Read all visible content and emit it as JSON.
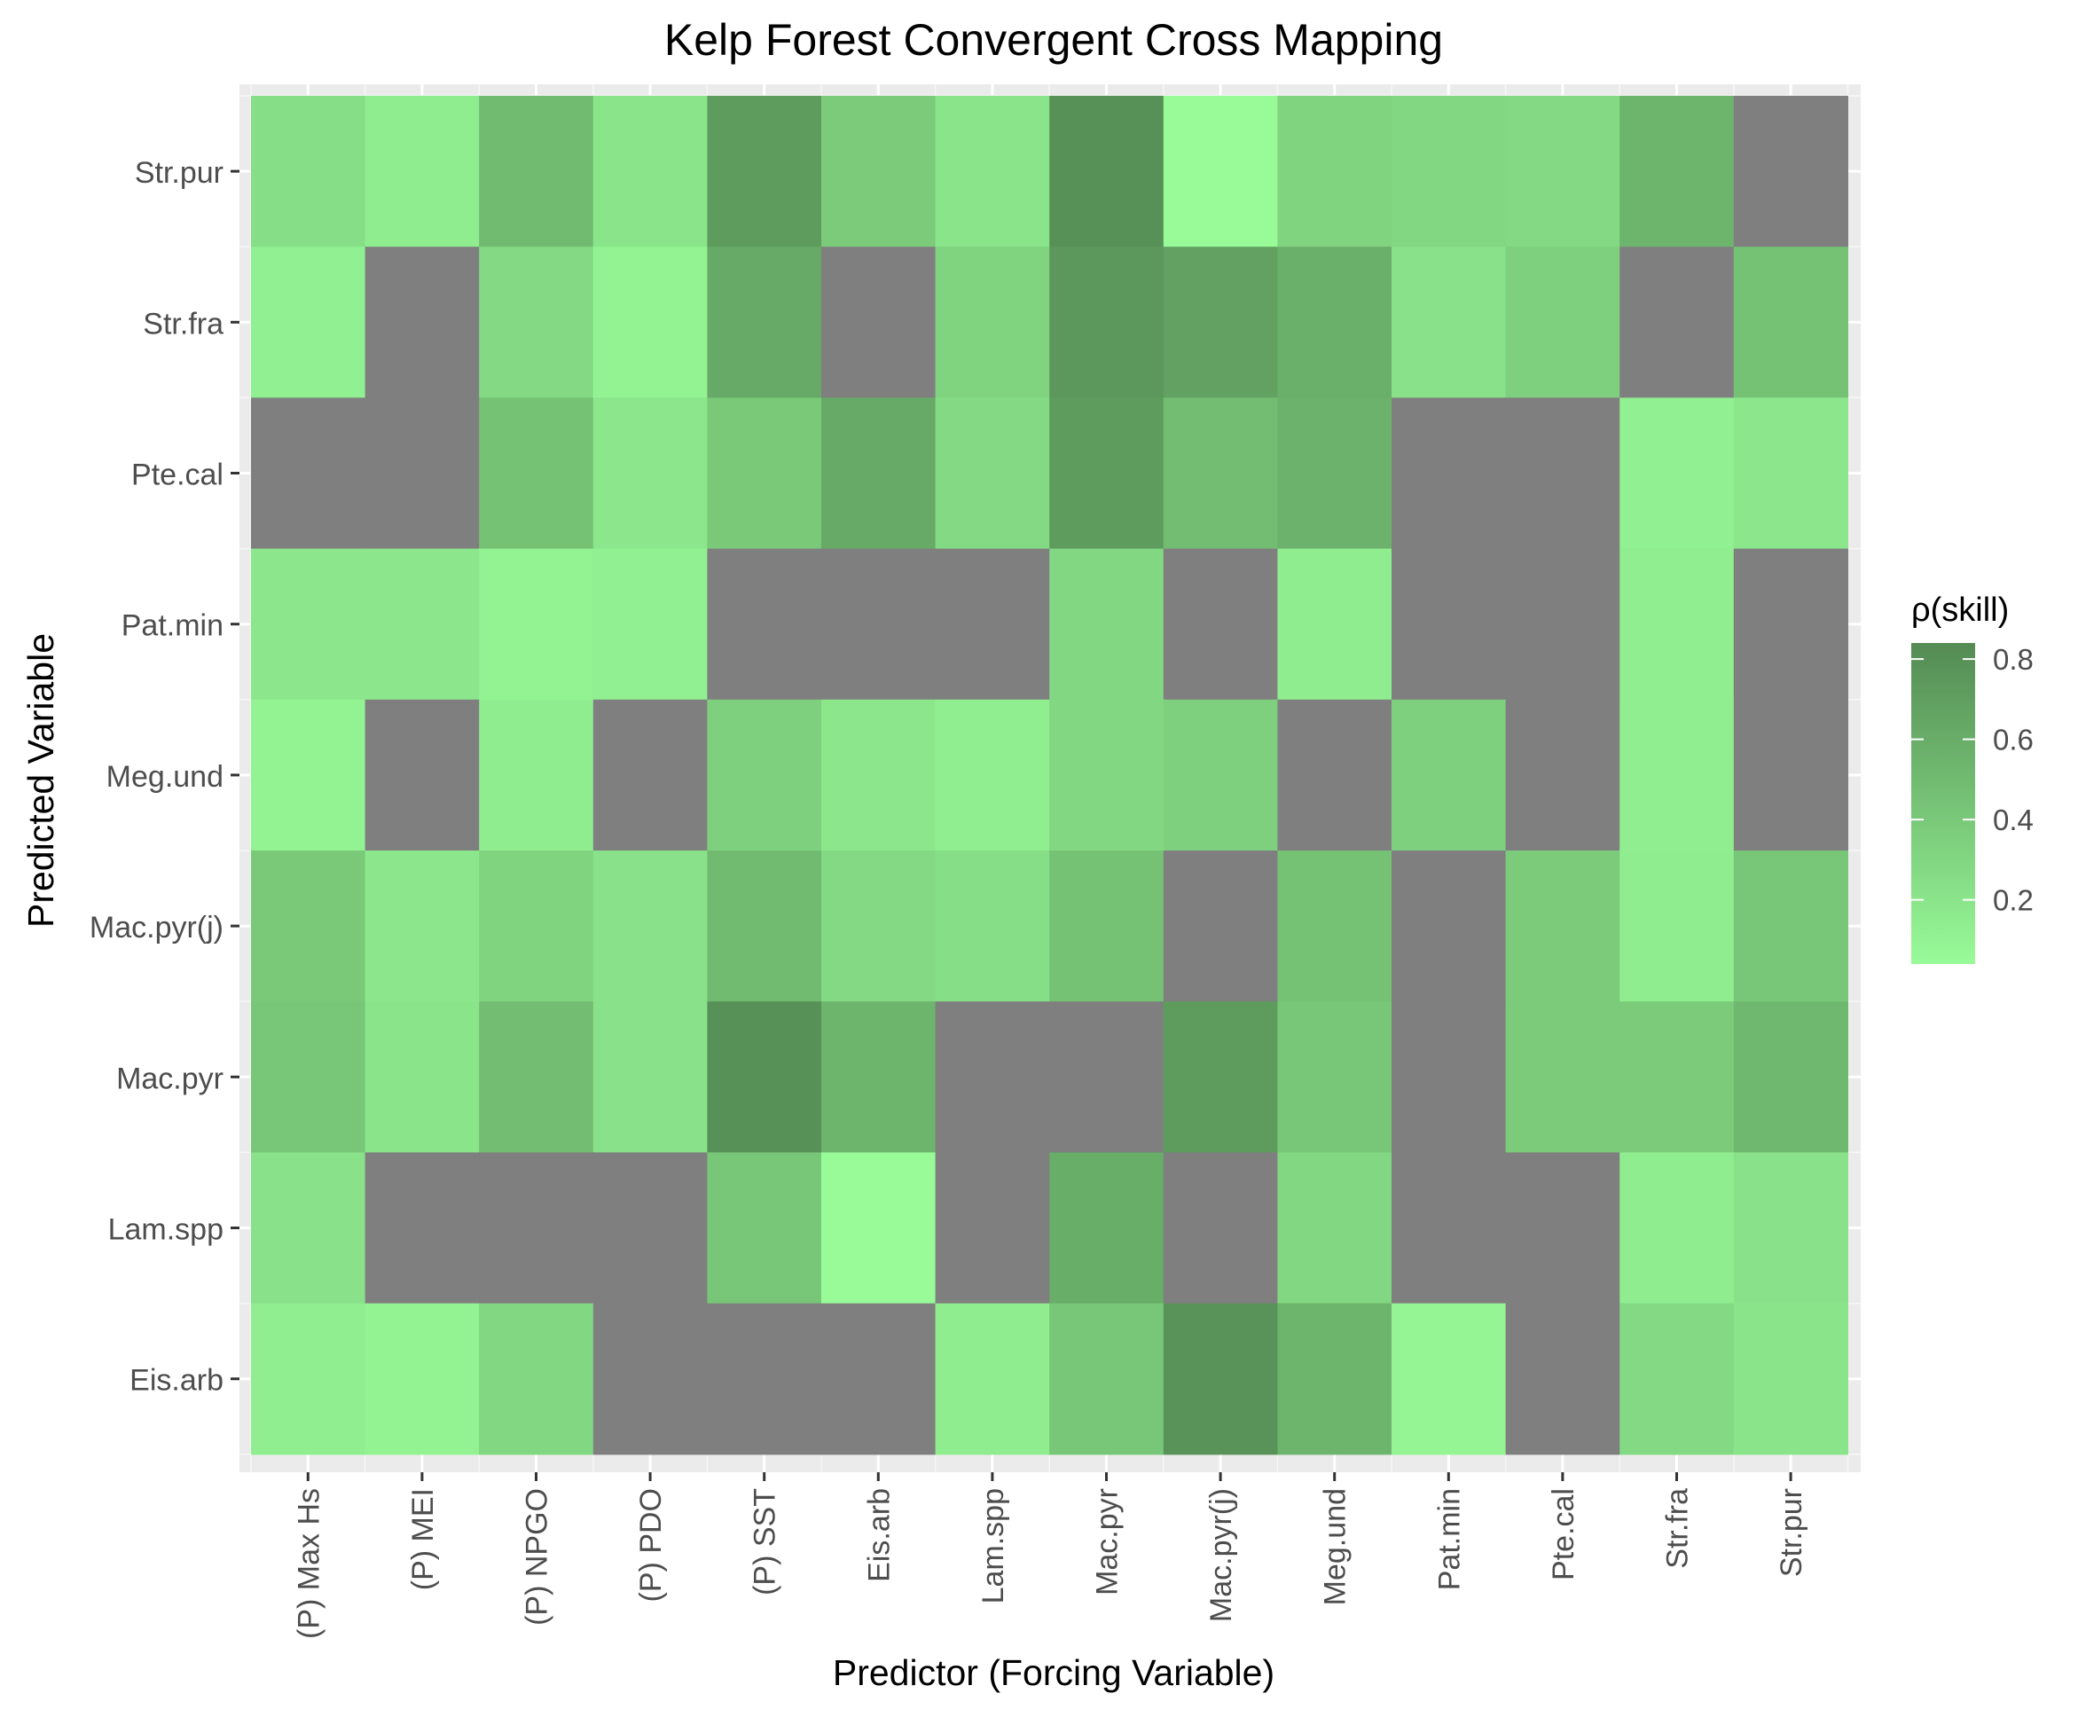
{
  "chart_data": {
    "type": "heatmap",
    "title": "Kelp Forest Convergent Cross Mapping",
    "xlabel": "Predictor (Forcing Variable)",
    "ylabel": "Predicted Variable",
    "x_categories": [
      "(P) Max Hs",
      "(P) MEI",
      "(P) NPGO",
      "(P) PDO",
      "(P) SST",
      "Eis.arb",
      "Lam.spp",
      "Mac.pyr",
      "Mac.pyr(j)",
      "Meg.und",
      "Pat.min",
      "Pte.cal",
      "Str.fra",
      "Str.pur"
    ],
    "y_categories": [
      "Str.pur",
      "Str.fra",
      "Pte.cal",
      "Pat.min",
      "Meg.und",
      "Mac.pyr(j)",
      "Mac.pyr",
      "Lam.spp",
      "Eis.arb"
    ],
    "values": [
      [
        0.25,
        0.15,
        0.5,
        0.2,
        0.72,
        0.38,
        0.2,
        0.8,
        0.04,
        0.32,
        0.3,
        0.28,
        0.55,
        null
      ],
      [
        0.12,
        null,
        0.28,
        0.1,
        0.62,
        null,
        0.32,
        0.75,
        0.68,
        0.58,
        0.22,
        0.35,
        null,
        0.45
      ],
      [
        null,
        null,
        0.45,
        0.18,
        0.4,
        0.62,
        0.28,
        0.72,
        0.48,
        0.56,
        null,
        null,
        0.12,
        0.18
      ],
      [
        0.18,
        0.18,
        0.1,
        0.12,
        null,
        null,
        null,
        0.3,
        null,
        0.15,
        null,
        null,
        0.14,
        null
      ],
      [
        0.1,
        null,
        0.15,
        null,
        0.35,
        0.18,
        0.14,
        0.3,
        0.35,
        null,
        0.35,
        null,
        0.13,
        null
      ],
      [
        0.4,
        0.18,
        0.32,
        0.22,
        0.5,
        0.28,
        0.25,
        0.45,
        null,
        0.45,
        null,
        0.38,
        0.15,
        0.42
      ],
      [
        0.42,
        0.2,
        0.48,
        0.22,
        0.8,
        0.55,
        null,
        null,
        0.72,
        0.42,
        null,
        0.38,
        0.38,
        0.52
      ],
      [
        0.22,
        null,
        null,
        null,
        0.42,
        0.04,
        null,
        0.6,
        null,
        0.3,
        null,
        null,
        0.15,
        0.22
      ],
      [
        0.13,
        0.1,
        0.3,
        null,
        null,
        null,
        0.15,
        0.42,
        0.78,
        0.55,
        0.08,
        null,
        0.28,
        0.2
      ]
    ],
    "missing_color": "#7f7f7f",
    "color_low": "#98fb98",
    "color_high": "#548b54",
    "legend": {
      "title": "ρ(skill)",
      "placement": "right",
      "range": [
        0.04,
        0.84
      ],
      "ticks": [
        0.2,
        0.4,
        0.6,
        0.8
      ],
      "tick_labels": [
        "0.2",
        "0.4",
        "0.6",
        "0.8"
      ]
    },
    "grid": true,
    "panel_background": "#ebebeb"
  }
}
